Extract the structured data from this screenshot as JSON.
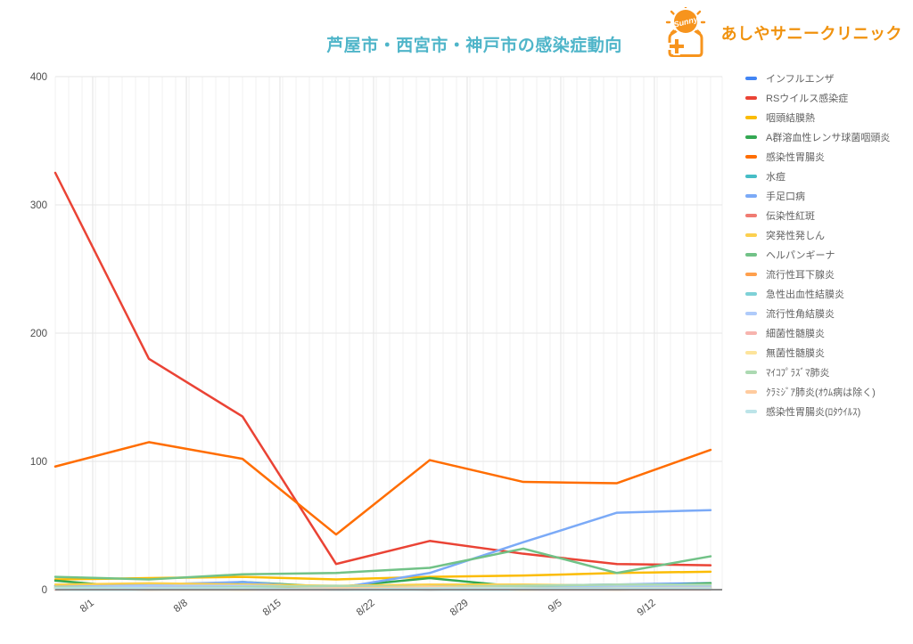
{
  "logo": {
    "brand": "あしやサニークリニック",
    "sun_text": "Sunny",
    "icon_color": "#F7941D",
    "text_color": "#F0920E"
  },
  "chart_data": {
    "type": "line",
    "title": "芦屋市・西宮市・神戸市の感染症動向",
    "title_color": "#4FB5C9",
    "legend_position": "right",
    "grid": {
      "horizontal": true,
      "vertical_daily_minor": true,
      "vertical_weekly_major": true
    },
    "ylim": [
      0,
      400
    ],
    "y_ticks": [
      0,
      100,
      200,
      300,
      400
    ],
    "x_tick_labels": [
      "8/1",
      "8/8",
      "8/15",
      "8/22",
      "8/29",
      "9/5",
      "9/12"
    ],
    "x_tick_days": [
      2.8,
      9.8,
      16.8,
      23.8,
      30.8,
      37.8,
      44.8
    ],
    "x_day_range": [
      0,
      49.87
    ],
    "data_days": [
      0,
      7,
      14,
      21,
      28,
      35,
      42,
      49
    ],
    "series": [
      {
        "name": "インフルエンザ",
        "color": "#4285F4",
        "values": [
          3,
          2,
          2,
          1,
          2,
          3,
          4,
          5
        ]
      },
      {
        "name": "RSウイルス感染症",
        "color": "#EA4335",
        "values": [
          325,
          180,
          135,
          20,
          38,
          28,
          20,
          19
        ]
      },
      {
        "name": "咽頭結膜熱",
        "color": "#FBBC04",
        "values": [
          8,
          9,
          10,
          8,
          10,
          11,
          13,
          14
        ]
      },
      {
        "name": "A群溶血性レンサ球菌咽頭炎",
        "color": "#34A853",
        "values": [
          7,
          1,
          6,
          2,
          9,
          2,
          2,
          5
        ]
      },
      {
        "name": "感染性胃腸炎",
        "color": "#FF6D01",
        "values": [
          96,
          115,
          102,
          43,
          101,
          84,
          83,
          109
        ]
      },
      {
        "name": "水痘",
        "color": "#46BDC6",
        "values": [
          1,
          1,
          1,
          0,
          1,
          1,
          2,
          2
        ]
      },
      {
        "name": "手足口病",
        "color": "#7BAAF7",
        "values": [
          3,
          4,
          6,
          1,
          13,
          37,
          60,
          62
        ]
      },
      {
        "name": "伝染性紅斑",
        "color": "#F07B72",
        "values": [
          1,
          0,
          1,
          1,
          0,
          1,
          1,
          1
        ]
      },
      {
        "name": "突発性発しん",
        "color": "#FCD04F",
        "values": [
          4,
          5,
          4,
          3,
          4,
          4,
          3,
          4
        ]
      },
      {
        "name": "ヘルパンギーナ",
        "color": "#71C287",
        "values": [
          10,
          8,
          12,
          13,
          17,
          32,
          13,
          26
        ]
      },
      {
        "name": "流行性耳下腺炎",
        "color": "#FFA04D",
        "values": [
          2,
          2,
          1,
          1,
          2,
          1,
          1,
          2
        ]
      },
      {
        "name": "急性出血性結膜炎",
        "color": "#7ED1D7",
        "values": [
          0,
          0,
          0,
          0,
          0,
          0,
          0,
          1
        ]
      },
      {
        "name": "流行性角結膜炎",
        "color": "#AFCBFA",
        "values": [
          2,
          3,
          3,
          2,
          2,
          3,
          3,
          3
        ]
      },
      {
        "name": "細菌性髄膜炎",
        "color": "#F7B4AE",
        "values": [
          0,
          1,
          0,
          0,
          1,
          0,
          0,
          0
        ]
      },
      {
        "name": "無菌性髄膜炎",
        "color": "#FDE49B",
        "values": [
          1,
          1,
          0,
          1,
          1,
          0,
          1,
          1
        ]
      },
      {
        "name": "ﾏｲｺﾌﾟﾗｽﾞﾏ肺炎",
        "color": "#ACD9B2",
        "values": [
          2,
          1,
          2,
          3,
          2,
          3,
          4,
          4
        ]
      },
      {
        "name": "ｸﾗﾐｼﾞｱ肺炎(ｵｳﾑ病は除く)",
        "color": "#FFCB9E",
        "values": [
          1,
          0,
          0,
          1,
          2,
          1,
          0,
          1
        ]
      },
      {
        "name": "感染性胃腸炎(ﾛﾀｳｲﾙｽ)",
        "color": "#BCE4E8",
        "values": [
          1,
          1,
          1,
          0,
          1,
          1,
          1,
          1
        ]
      }
    ],
    "axis_label_color": "#4d4d4d",
    "gridline_minor_color": "#f1f1f1",
    "gridline_major_color": "#e2e2e2",
    "baseline_color": "#8a8a8a"
  }
}
